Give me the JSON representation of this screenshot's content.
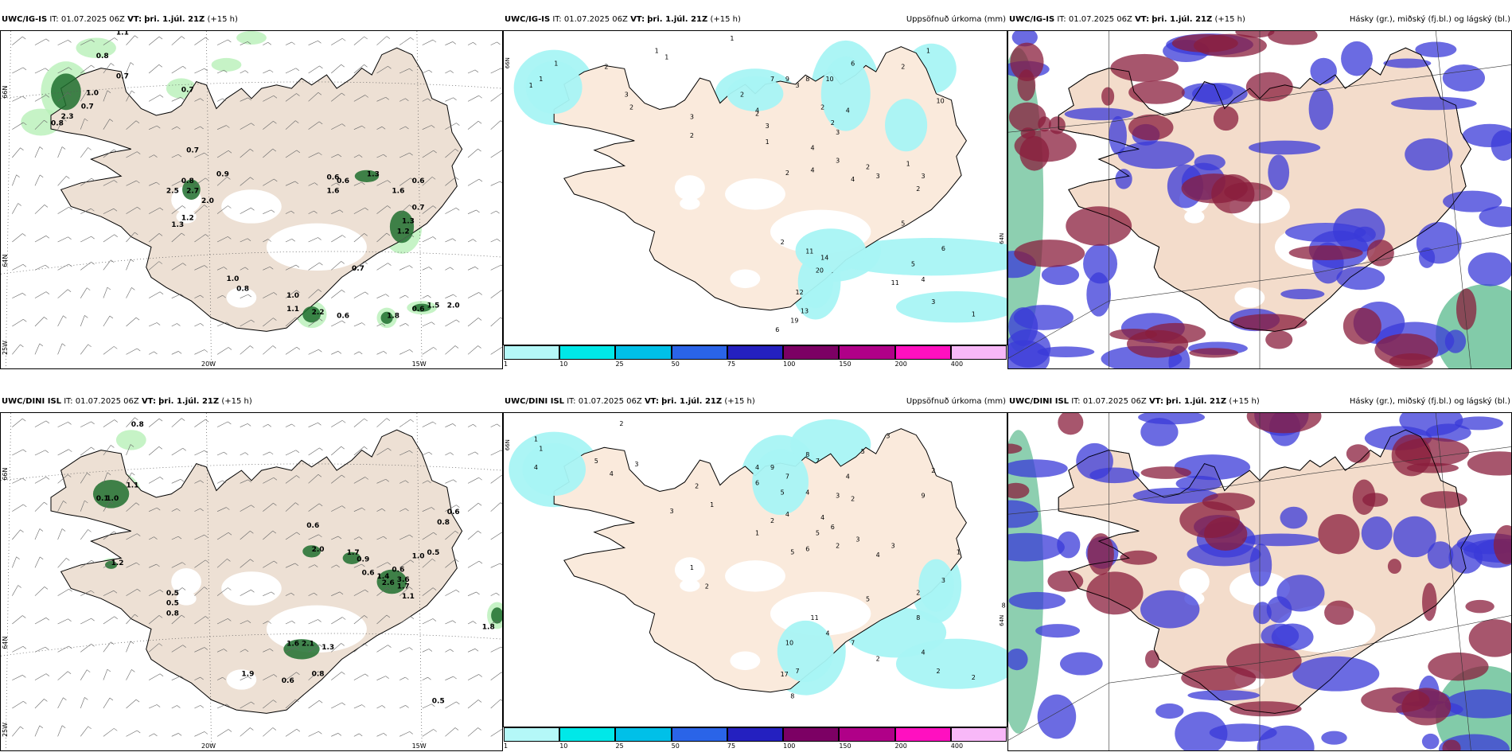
{
  "rows": [
    {
      "model": "UWC/IG-IS",
      "it_label": "IT:",
      "it_value": "01.07.2025 06Z",
      "vt_label": "VT:",
      "vt_value": "þri. 1.júl. 21Z",
      "lead": "(+15 h)"
    },
    {
      "model": "UWC/DINI ISL",
      "it_label": "IT:",
      "it_value": "01.07.2025 06Z",
      "vt_label": "VT:",
      "vt_value": "þri. 1.júl. 21Z",
      "lead": "(+15 h)"
    }
  ],
  "precip_title": "Uppsöfnuð úrkoma (mm)",
  "cloud_title": "Hásky (gr.), miðský (fj.bl.) og lágský (bl.)",
  "axis": {
    "lat66": "66N",
    "lat64": "64N",
    "lon20": "20W",
    "lon15": "15W",
    "lon25": "25W"
  },
  "colorbar": {
    "levels": [
      "1",
      "10",
      "25",
      "50",
      "75",
      "100",
      "150",
      "200",
      "400"
    ],
    "colors": [
      "#b4f8f8",
      "#00e8e8",
      "#00c0e8",
      "#2a64e8",
      "#2420c0",
      "#7c0064",
      "#b00088",
      "#ff10c0",
      "#f8b8f8"
    ]
  },
  "panel1_labels": [
    [
      "0.8",
      0.19,
      0.08
    ],
    [
      "1.1",
      0.23,
      0.01
    ],
    [
      "0.7",
      0.23,
      0.14
    ],
    [
      "0.7",
      0.36,
      0.18
    ],
    [
      "1.0",
      0.17,
      0.19
    ],
    [
      "0.7",
      0.16,
      0.23
    ],
    [
      "2.3",
      0.12,
      0.26
    ],
    [
      "0.8",
      0.1,
      0.28
    ],
    [
      "0.7",
      0.37,
      0.36
    ],
    [
      "0.9",
      0.43,
      0.43
    ],
    [
      "0.8",
      0.36,
      0.45
    ],
    [
      "2.7",
      0.37,
      0.48
    ],
    [
      "2.5",
      0.33,
      0.48
    ],
    [
      "2.0",
      0.4,
      0.51
    ],
    [
      "1.2",
      0.36,
      0.56
    ],
    [
      "1.3",
      0.34,
      0.58
    ],
    [
      "0.6",
      0.65,
      0.44
    ],
    [
      "0.6",
      0.67,
      0.45
    ],
    [
      "1.3",
      0.73,
      0.43
    ],
    [
      "1.6",
      0.65,
      0.48
    ],
    [
      "1.6",
      0.78,
      0.48
    ],
    [
      "0.6",
      0.82,
      0.45
    ],
    [
      "0.7",
      0.82,
      0.53
    ],
    [
      "1.3",
      0.8,
      0.57
    ],
    [
      "1.2",
      0.79,
      0.6
    ],
    [
      "0.7",
      0.7,
      0.71
    ],
    [
      "1.0",
      0.45,
      0.74
    ],
    [
      "0.8",
      0.47,
      0.77
    ],
    [
      "1.0",
      0.57,
      0.79
    ],
    [
      "1.1",
      0.57,
      0.83
    ],
    [
      "2.2",
      0.62,
      0.84
    ],
    [
      "0.6",
      0.67,
      0.85
    ],
    [
      "1.8",
      0.77,
      0.85
    ],
    [
      "0.6",
      0.82,
      0.83
    ],
    [
      "1.5",
      0.85,
      0.82
    ],
    [
      "2.0",
      0.89,
      0.82
    ]
  ],
  "panel2_labels": [
    [
      "1",
      0.45,
      0.03
    ],
    [
      "1",
      0.1,
      0.11
    ],
    [
      "1",
      0.07,
      0.16
    ],
    [
      "1",
      0.05,
      0.18
    ],
    [
      "2",
      0.2,
      0.12
    ],
    [
      "1",
      0.3,
      0.07
    ],
    [
      "1",
      0.32,
      0.09
    ],
    [
      "3",
      0.24,
      0.21
    ],
    [
      "2",
      0.25,
      0.25
    ],
    [
      "3",
      0.37,
      0.28
    ],
    [
      "2",
      0.37,
      0.34
    ],
    [
      "2",
      0.47,
      0.21
    ],
    [
      "2",
      0.5,
      0.27
    ],
    [
      "3",
      0.58,
      0.18
    ],
    [
      "7",
      0.53,
      0.16
    ],
    [
      "9",
      0.56,
      0.16
    ],
    [
      "4",
      0.5,
      0.26
    ],
    [
      "3",
      0.52,
      0.31
    ],
    [
      "1",
      0.52,
      0.36
    ],
    [
      "4",
      0.61,
      0.38
    ],
    [
      "8",
      0.6,
      0.16
    ],
    [
      "2",
      0.63,
      0.25
    ],
    [
      "10",
      0.64,
      0.16
    ],
    [
      "2",
      0.65,
      0.3
    ],
    [
      "4",
      0.68,
      0.26
    ],
    [
      "3",
      0.66,
      0.33
    ],
    [
      "4",
      0.61,
      0.45
    ],
    [
      "2",
      0.56,
      0.46
    ],
    [
      "3",
      0.66,
      0.42
    ],
    [
      "4",
      0.69,
      0.48
    ],
    [
      "2",
      0.72,
      0.44
    ],
    [
      "3",
      0.74,
      0.47
    ],
    [
      "6",
      0.69,
      0.11
    ],
    [
      "2",
      0.79,
      0.12
    ],
    [
      "1",
      0.84,
      0.07
    ],
    [
      "10",
      0.86,
      0.23
    ],
    [
      "1",
      0.8,
      0.43
    ],
    [
      "3",
      0.83,
      0.47
    ],
    [
      "2",
      0.82,
      0.51
    ],
    [
      "5",
      0.79,
      0.62
    ],
    [
      "2",
      0.55,
      0.68
    ],
    [
      "11",
      0.6,
      0.71
    ],
    [
      "20",
      0.62,
      0.77
    ],
    [
      "14",
      0.63,
      0.73
    ],
    [
      "12",
      0.58,
      0.84
    ],
    [
      "13",
      0.59,
      0.9
    ],
    [
      "19",
      0.57,
      0.93
    ],
    [
      "6",
      0.54,
      0.96
    ],
    [
      "6",
      0.87,
      0.7
    ],
    [
      "4",
      0.83,
      0.8
    ],
    [
      "3",
      0.85,
      0.87
    ],
    [
      "1",
      0.93,
      0.91
    ],
    [
      "5",
      0.81,
      0.75
    ],
    [
      "11",
      0.77,
      0.81
    ]
  ],
  "panel4_labels": [
    [
      "0.8",
      0.26,
      0.04
    ],
    [
      "1.1",
      0.25,
      0.22
    ],
    [
      "1.0",
      0.21,
      0.26
    ],
    [
      "0.1",
      0.19,
      0.26
    ],
    [
      "0.6",
      0.61,
      0.34
    ],
    [
      "2.0",
      0.62,
      0.41
    ],
    [
      "1.7",
      0.69,
      0.42
    ],
    [
      "0.9",
      0.71,
      0.44
    ],
    [
      "1.2",
      0.22,
      0.45
    ],
    [
      "0.6",
      0.72,
      0.48
    ],
    [
      "1.4",
      0.75,
      0.49
    ],
    [
      "0.6",
      0.78,
      0.47
    ],
    [
      "0.5",
      0.33,
      0.54
    ],
    [
      "0.5",
      0.33,
      0.57
    ],
    [
      "0.8",
      0.33,
      0.6
    ],
    [
      "0.6",
      0.89,
      0.3
    ],
    [
      "0.8",
      0.87,
      0.33
    ],
    [
      "0.5",
      0.85,
      0.42
    ],
    [
      "1.0",
      0.82,
      0.43
    ],
    [
      "1.1",
      0.8,
      0.55
    ],
    [
      "1.7",
      0.79,
      0.52
    ],
    [
      "3.6",
      0.79,
      0.5
    ],
    [
      "2.6",
      0.76,
      0.51
    ],
    [
      "1.6",
      0.57,
      0.69
    ],
    [
      "2.1",
      0.6,
      0.69
    ],
    [
      "1.3",
      0.64,
      0.7
    ],
    [
      "1.9",
      0.48,
      0.78
    ],
    [
      "0.6",
      0.56,
      0.8
    ],
    [
      "0.8",
      0.62,
      0.78
    ],
    [
      "1.8",
      0.96,
      0.64
    ],
    [
      "0.5",
      0.86,
      0.86
    ]
  ],
  "panel5_labels": [
    [
      "2",
      0.23,
      0.04
    ],
    [
      "1",
      0.06,
      0.09
    ],
    [
      "1",
      0.07,
      0.12
    ],
    [
      "4",
      0.06,
      0.18
    ],
    [
      "5",
      0.18,
      0.16
    ],
    [
      "4",
      0.21,
      0.2
    ],
    [
      "3",
      0.26,
      0.17
    ],
    [
      "2",
      0.38,
      0.24
    ],
    [
      "3",
      0.33,
      0.32
    ],
    [
      "1",
      0.41,
      0.3
    ],
    [
      "4",
      0.5,
      0.18
    ],
    [
      "9",
      0.53,
      0.18
    ],
    [
      "6",
      0.5,
      0.23
    ],
    [
      "5",
      0.55,
      0.26
    ],
    [
      "7",
      0.56,
      0.21
    ],
    [
      "8",
      0.6,
      0.14
    ],
    [
      "4",
      0.6,
      0.26
    ],
    [
      "4",
      0.56,
      0.33
    ],
    [
      "2",
      0.53,
      0.35
    ],
    [
      "1",
      0.5,
      0.39
    ],
    [
      "5",
      0.57,
      0.45
    ],
    [
      "6",
      0.6,
      0.44
    ],
    [
      "4",
      0.63,
      0.34
    ],
    [
      "6",
      0.65,
      0.37
    ],
    [
      "5",
      0.62,
      0.39
    ],
    [
      "2",
      0.66,
      0.43
    ],
    [
      "3",
      0.7,
      0.41
    ],
    [
      "4",
      0.74,
      0.46
    ],
    [
      "3",
      0.77,
      0.43
    ],
    [
      "7",
      0.62,
      0.16
    ],
    [
      "4",
      0.68,
      0.21
    ],
    [
      "3",
      0.66,
      0.27
    ],
    [
      "2",
      0.69,
      0.28
    ],
    [
      "5",
      0.71,
      0.13
    ],
    [
      "3",
      0.76,
      0.08
    ],
    [
      "9",
      0.83,
      0.27
    ],
    [
      "2",
      0.85,
      0.19
    ],
    [
      "1",
      0.9,
      0.45
    ],
    [
      "3",
      0.87,
      0.54
    ],
    [
      "2",
      0.82,
      0.58
    ],
    [
      "8",
      0.82,
      0.66
    ],
    [
      "8",
      0.99,
      0.62
    ],
    [
      "5",
      0.72,
      0.6
    ],
    [
      "11",
      0.61,
      0.66
    ],
    [
      "10",
      0.56,
      0.74
    ],
    [
      "17",
      0.55,
      0.84
    ],
    [
      "7",
      0.58,
      0.83
    ],
    [
      "8",
      0.57,
      0.91
    ],
    [
      "4",
      0.64,
      0.71
    ],
    [
      "7",
      0.69,
      0.74
    ],
    [
      "2",
      0.74,
      0.79
    ],
    [
      "4",
      0.83,
      0.77
    ],
    [
      "2",
      0.86,
      0.83
    ],
    [
      "2",
      0.93,
      0.85
    ],
    [
      "1",
      0.37,
      0.5
    ],
    [
      "2",
      0.4,
      0.56
    ]
  ]
}
